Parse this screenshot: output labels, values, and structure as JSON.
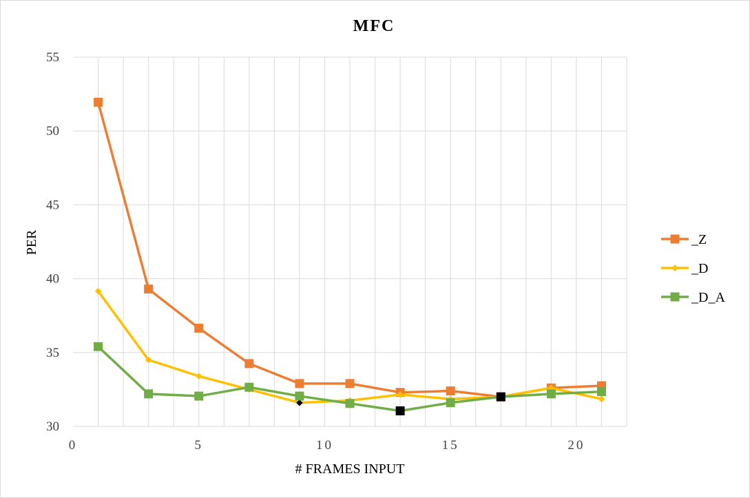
{
  "chart_data": {
    "type": "line",
    "title": "MFC",
    "xlabel": "# FRAMES INPUT",
    "ylabel": "PER",
    "xlim": [
      0,
      22
    ],
    "ylim": [
      30,
      55
    ],
    "xticks": [
      0,
      5,
      10,
      15,
      20
    ],
    "yticks": [
      30,
      35,
      40,
      45,
      50,
      55
    ],
    "grid": true,
    "legend_position": "right",
    "x": [
      1,
      3,
      5,
      7,
      9,
      11,
      13,
      15,
      17,
      19,
      21
    ],
    "series": [
      {
        "name": "_Z",
        "color": "#ED7D31",
        "marker": "square",
        "values": [
          51.95,
          39.3,
          36.65,
          34.25,
          32.9,
          32.9,
          32.3,
          32.4,
          32.0,
          32.6,
          32.75
        ]
      },
      {
        "name": "_D",
        "color": "#FFC000",
        "marker": "diamond",
        "values": [
          39.15,
          34.5,
          33.4,
          32.5,
          31.6,
          31.75,
          32.15,
          31.85,
          32.0,
          32.6,
          31.85
        ]
      },
      {
        "name": "_D_A",
        "color": "#70AD47",
        "marker": "square",
        "values": [
          35.4,
          32.2,
          32.05,
          32.65,
          32.05,
          31.55,
          31.05,
          31.6,
          32.0,
          32.2,
          32.35
        ]
      }
    ],
    "highlighted_points": [
      {
        "series": "_D",
        "x": 9,
        "color": "#000000"
      },
      {
        "series": "_D_A",
        "x": 13,
        "color": "#000000"
      },
      {
        "series": "_D_A",
        "x": 17,
        "color": "#000000"
      }
    ]
  }
}
